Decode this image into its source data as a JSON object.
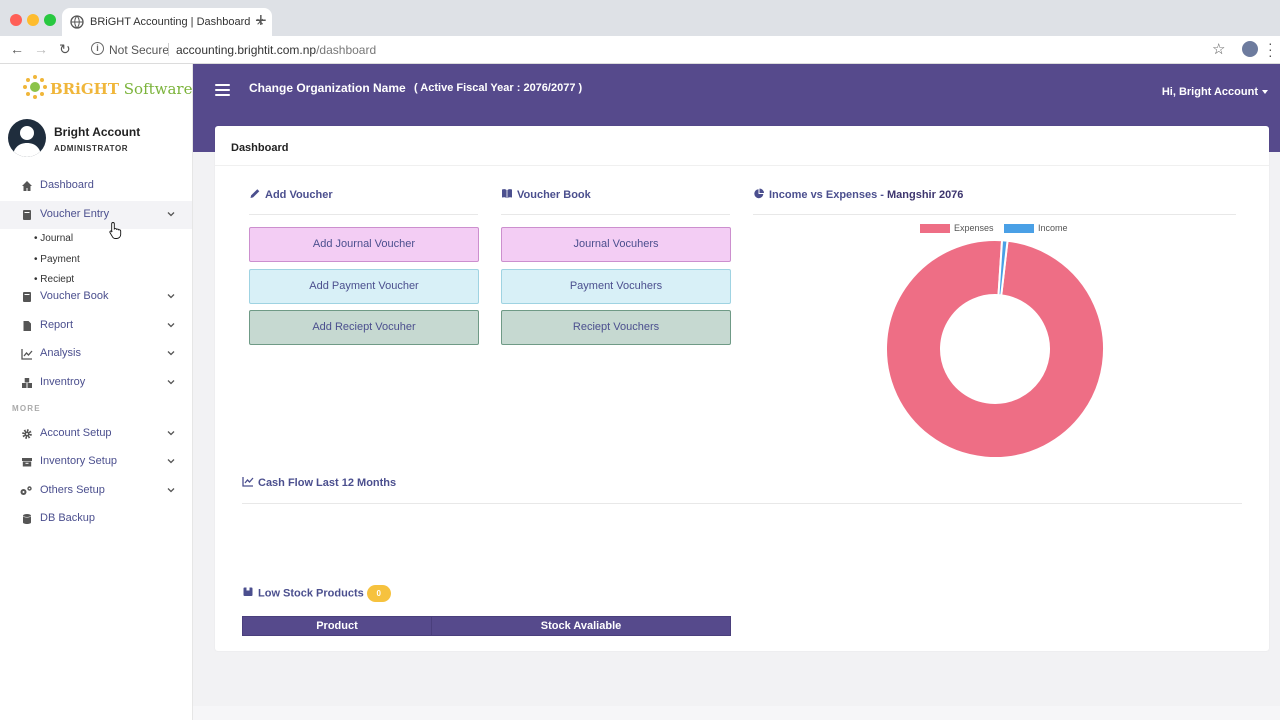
{
  "browser": {
    "tab_title": "BRiGHT Accounting | Dashboard",
    "new_tab": "+",
    "not_secure": "Not Secure",
    "url_host": "accounting.brightit.com.np",
    "url_path": "/dashboard"
  },
  "brand": {
    "logo_first": "BRiGHT",
    "logo_second": " Software"
  },
  "user": {
    "name": "Bright Account",
    "role": "ADMINISTRATOR"
  },
  "sidebar": {
    "items": [
      {
        "label": "Dashboard",
        "icon": "home-icon"
      },
      {
        "label": "Voucher Entry",
        "icon": "book-icon"
      },
      {
        "label": "Voucher Book",
        "icon": "book-icon"
      },
      {
        "label": "Report",
        "icon": "file-icon"
      },
      {
        "label": "Analysis",
        "icon": "chart-line-icon"
      },
      {
        "label": "Inventroy",
        "icon": "boxes-icon"
      },
      {
        "label": "Account Setup",
        "icon": "gear-icon"
      },
      {
        "label": "Inventory Setup",
        "icon": "archive-icon"
      },
      {
        "label": "Others Setup",
        "icon": "gears-icon"
      },
      {
        "label": "DB Backup",
        "icon": "database-icon"
      }
    ],
    "sub_items": [
      "Journal",
      "Payment",
      "Reciept"
    ],
    "more_label": "MORE"
  },
  "header": {
    "org_name": "Change Organization Name",
    "fiscal": "( Active Fiscal Year : 2076/2077 )",
    "account_menu": "Hi, Bright Account"
  },
  "dashboard": {
    "title": "Dashboard",
    "add_voucher": {
      "heading": "Add Voucher",
      "buttons": [
        "Add Journal Voucher",
        "Add Payment Voucher",
        "Add Reciept Vocuher"
      ]
    },
    "voucher_book": {
      "heading": "Voucher Book",
      "buttons": [
        "Journal Vocuhers",
        "Payment Vocuhers",
        "Reciept Vouchers"
      ]
    },
    "income_expenses": {
      "heading": "Income vs Expenses - ",
      "period": "Mangshir 2076"
    },
    "cash_flow": {
      "heading": "Cash Flow Last 12 Months"
    },
    "low_stock": {
      "heading": "Low Stock Products",
      "count": "0",
      "columns": [
        "Product",
        "Stock Avaliable"
      ]
    }
  },
  "chart_data": {
    "type": "pie",
    "variant": "doughnut",
    "categories": [
      "Expenses",
      "Income"
    ],
    "values": [
      99.2,
      0.8
    ],
    "colors": [
      "#ee6e85",
      "#4aa0e6"
    ],
    "legend_position": "top"
  },
  "colors": {
    "primary": "#564a8c",
    "expenses": "#ee6e85",
    "income": "#4aa0e6",
    "badge": "#f6c23e"
  }
}
